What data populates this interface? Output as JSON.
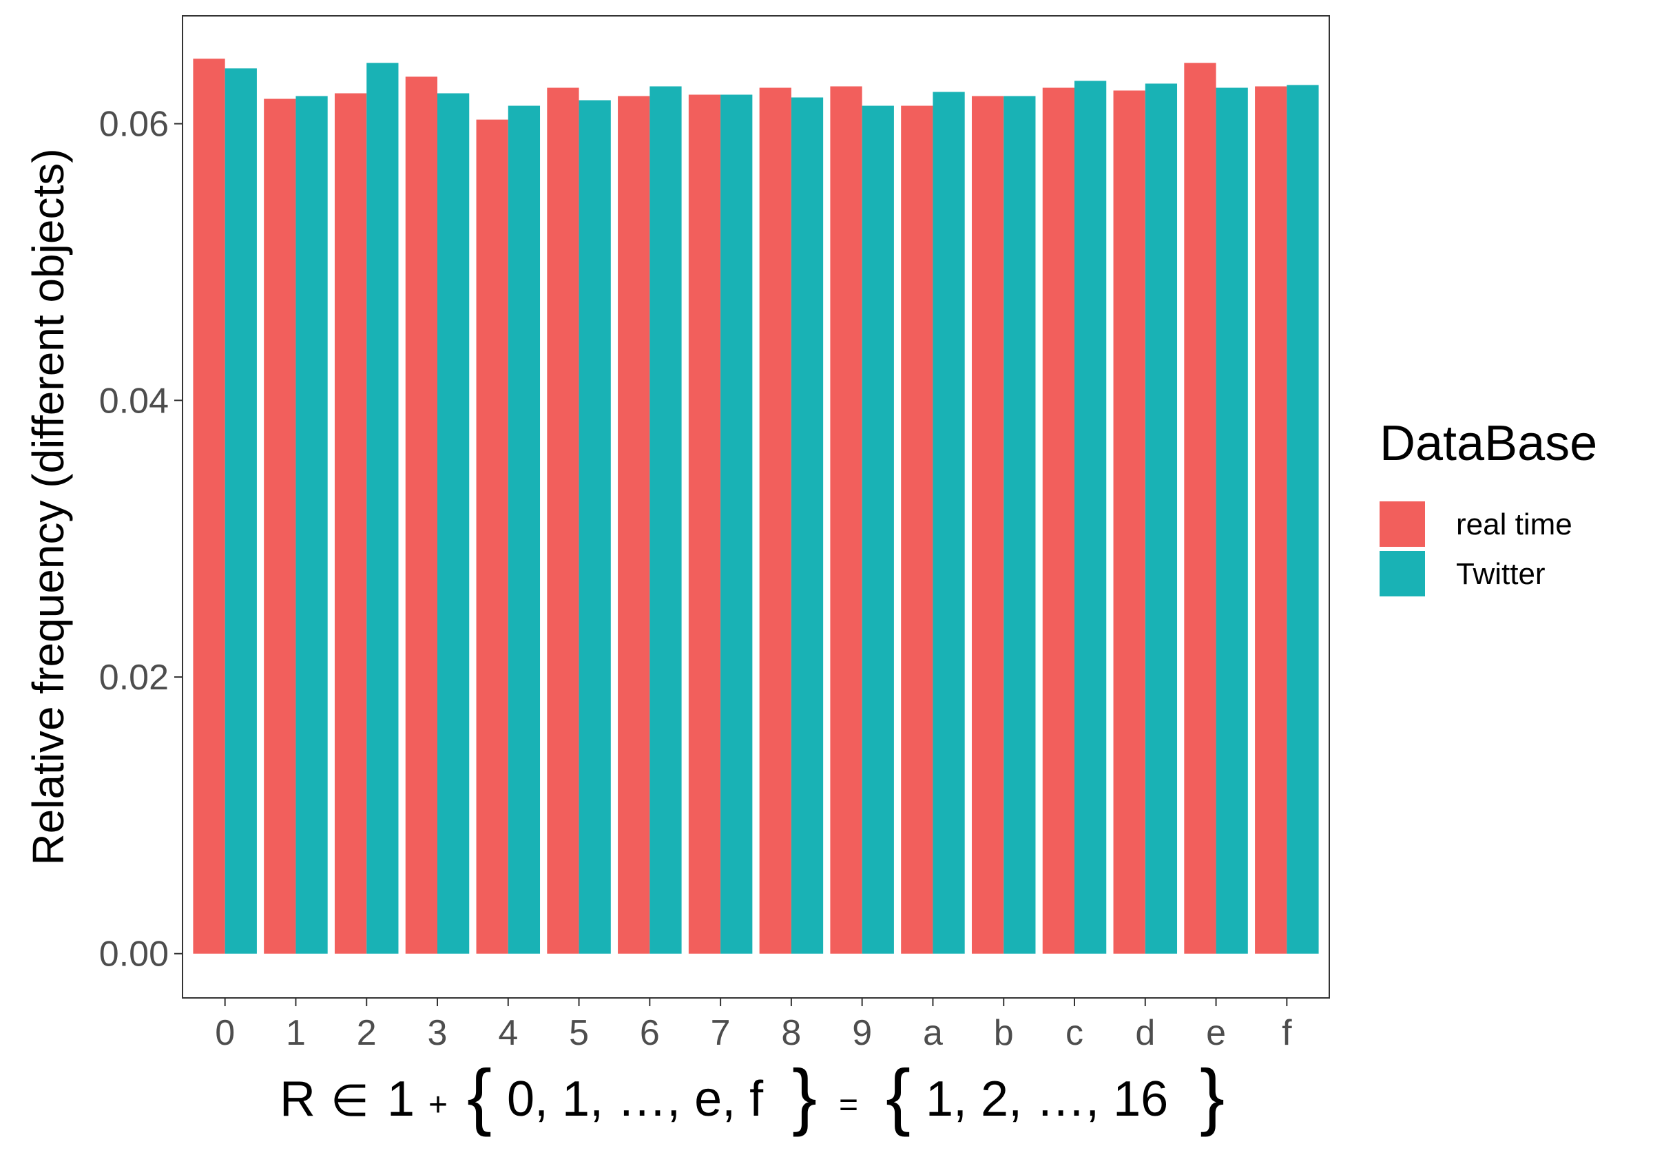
{
  "chart_data": {
    "type": "bar",
    "categories": [
      "0",
      "1",
      "2",
      "3",
      "4",
      "5",
      "6",
      "7",
      "8",
      "9",
      "a",
      "b",
      "c",
      "d",
      "e",
      "f"
    ],
    "series": [
      {
        "name": "real time",
        "color": "#F25F5C",
        "values": [
          0.0647,
          0.0618,
          0.0622,
          0.0634,
          0.0603,
          0.0626,
          0.062,
          0.0621,
          0.0626,
          0.0627,
          0.0613,
          0.062,
          0.0626,
          0.0624,
          0.0644,
          0.0627
        ]
      },
      {
        "name": "Twitter",
        "color": "#19B2B5",
        "values": [
          0.064,
          0.062,
          0.0644,
          0.0622,
          0.0613,
          0.0617,
          0.0627,
          0.0621,
          0.0619,
          0.0613,
          0.0623,
          0.062,
          0.0631,
          0.0629,
          0.0626,
          0.0628
        ]
      }
    ],
    "ylabel": "Relative frequency (different objects)",
    "xlabel": {
      "lhs": "R",
      "in_symbol": "∈",
      "one": "1",
      "plus": "+",
      "set_a": "0, 1, …, e, f",
      "equals": "=",
      "set_b": "1, 2, …, 16"
    },
    "y_ticks": [
      "0.00",
      "0.02",
      "0.04",
      "0.06"
    ],
    "y_tick_values": [
      0,
      0.02,
      0.04,
      0.06
    ],
    "ylim": [
      -0.0032,
      0.0678
    ],
    "grid": false,
    "legend": {
      "title": "DataBase",
      "placement": "right"
    }
  }
}
